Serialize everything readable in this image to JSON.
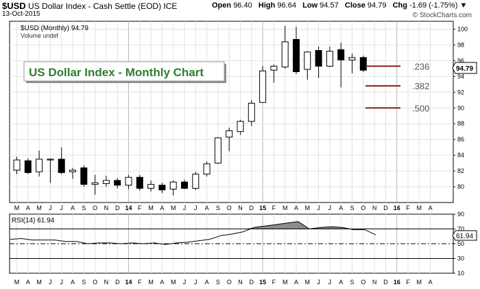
{
  "header": {
    "symbol": "$USD",
    "name": "US Dollar Index - Cash Settle (EOD) ICE",
    "date": "13-Oct-2015",
    "open_label": "Open",
    "open": "96.40",
    "high_label": "High",
    "high": "96.64",
    "low_label": "Low",
    "low": "94.57",
    "close_label": "Close",
    "close": "94.79",
    "chg_label": "Chg",
    "chg": "-1.69 (-1.75%)",
    "watermark": "© StockCharts.com"
  },
  "legend": {
    "series": "$USD (Monthly) 94.79",
    "volume": "Volume undef"
  },
  "annotation": "US Dollar Index - Monthly Chart",
  "colors": {
    "title_text": "#2e7d32",
    "fib_line": "#8b1a1a",
    "price_tag": "#000000",
    "rsi_fill": "#8c8c8c"
  },
  "x_labels": [
    "M",
    "A",
    "M",
    "J",
    "J",
    "A",
    "S",
    "O",
    "N",
    "D",
    "14",
    "F",
    "M",
    "A",
    "M",
    "J",
    "J",
    "A",
    "S",
    "O",
    "N",
    "D",
    "15",
    "F",
    "M",
    "A",
    "M",
    "J",
    "J",
    "A",
    "S",
    "O",
    "N",
    "D",
    "16",
    "F",
    "M",
    "A"
  ],
  "bold_labels": [
    "14",
    "15",
    "16"
  ],
  "chart_data": [
    {
      "type": "candlestick",
      "title": "$USD (Monthly) 94.79",
      "ylim": [
        78,
        101
      ],
      "yticks": [
        80,
        82,
        84,
        86,
        88,
        90,
        92,
        94,
        96,
        98,
        100
      ],
      "last_price": "94.79",
      "grid": true,
      "candles": [
        {
          "o": 82.1,
          "h": 83.8,
          "l": 81.6,
          "c": 83.4
        },
        {
          "o": 83.3,
          "h": 83.6,
          "l": 81.6,
          "c": 81.8
        },
        {
          "o": 81.9,
          "h": 84.6,
          "l": 81.3,
          "c": 83.5
        },
        {
          "o": 83.4,
          "h": 83.6,
          "l": 80.5,
          "c": 83.5
        },
        {
          "o": 83.5,
          "h": 85.0,
          "l": 81.6,
          "c": 81.8
        },
        {
          "o": 81.9,
          "h": 82.4,
          "l": 81.0,
          "c": 82.1
        },
        {
          "o": 82.4,
          "h": 82.7,
          "l": 80.0,
          "c": 80.3
        },
        {
          "o": 80.3,
          "h": 81.5,
          "l": 79.0,
          "c": 80.5
        },
        {
          "o": 80.4,
          "h": 81.4,
          "l": 80.0,
          "c": 80.8
        },
        {
          "o": 80.8,
          "h": 81.1,
          "l": 79.8,
          "c": 80.2
        },
        {
          "o": 80.2,
          "h": 81.5,
          "l": 79.7,
          "c": 81.2
        },
        {
          "o": 81.2,
          "h": 81.5,
          "l": 79.5,
          "c": 79.8
        },
        {
          "o": 79.8,
          "h": 80.8,
          "l": 79.4,
          "c": 80.3
        },
        {
          "o": 80.2,
          "h": 80.5,
          "l": 79.2,
          "c": 79.6
        },
        {
          "o": 79.7,
          "h": 80.8,
          "l": 78.9,
          "c": 80.6
        },
        {
          "o": 80.6,
          "h": 80.9,
          "l": 79.7,
          "c": 79.8
        },
        {
          "o": 79.8,
          "h": 81.9,
          "l": 79.6,
          "c": 81.6
        },
        {
          "o": 81.6,
          "h": 83.2,
          "l": 81.3,
          "c": 82.9
        },
        {
          "o": 83.0,
          "h": 86.3,
          "l": 82.9,
          "c": 86.2
        },
        {
          "o": 86.3,
          "h": 87.5,
          "l": 84.5,
          "c": 87.1
        },
        {
          "o": 87.0,
          "h": 88.5,
          "l": 86.6,
          "c": 88.3
        },
        {
          "o": 88.3,
          "h": 91.0,
          "l": 87.7,
          "c": 90.6
        },
        {
          "o": 90.7,
          "h": 95.3,
          "l": 90.7,
          "c": 94.7
        },
        {
          "o": 94.8,
          "h": 95.5,
          "l": 93.2,
          "c": 95.3
        },
        {
          "o": 95.2,
          "h": 100.4,
          "l": 95.0,
          "c": 98.4
        },
        {
          "o": 98.7,
          "h": 100.3,
          "l": 94.3,
          "c": 94.6
        },
        {
          "o": 94.9,
          "h": 97.2,
          "l": 93.6,
          "c": 97.1
        },
        {
          "o": 97.3,
          "h": 97.8,
          "l": 93.8,
          "c": 95.3
        },
        {
          "o": 95.3,
          "h": 97.8,
          "l": 95.2,
          "c": 97.2
        },
        {
          "o": 97.4,
          "h": 98.3,
          "l": 92.6,
          "c": 96.1
        },
        {
          "o": 96.1,
          "h": 96.9,
          "l": 94.4,
          "c": 96.4
        },
        {
          "o": 96.4,
          "h": 96.64,
          "l": 94.57,
          "c": 94.79
        }
      ],
      "fib_levels": [
        {
          "label": ".236",
          "value": 95.3
        },
        {
          "label": ".382",
          "value": 92.8
        },
        {
          "label": ".500",
          "value": 90.0
        }
      ]
    },
    {
      "type": "line",
      "title": "RSI(14) 61.94",
      "ylim": [
        10,
        90
      ],
      "yticks": [
        10,
        30,
        50,
        70,
        90
      ],
      "reference_lines": [
        70,
        50,
        30
      ],
      "last_value": "61.94",
      "values": [
        56,
        57,
        55,
        55,
        55,
        53,
        53,
        50,
        51,
        51,
        50,
        51,
        50,
        51,
        49,
        51,
        52,
        54,
        56,
        61,
        63,
        66,
        72,
        74,
        76,
        78,
        80,
        70,
        72,
        73,
        72,
        69,
        69,
        62
      ]
    }
  ]
}
